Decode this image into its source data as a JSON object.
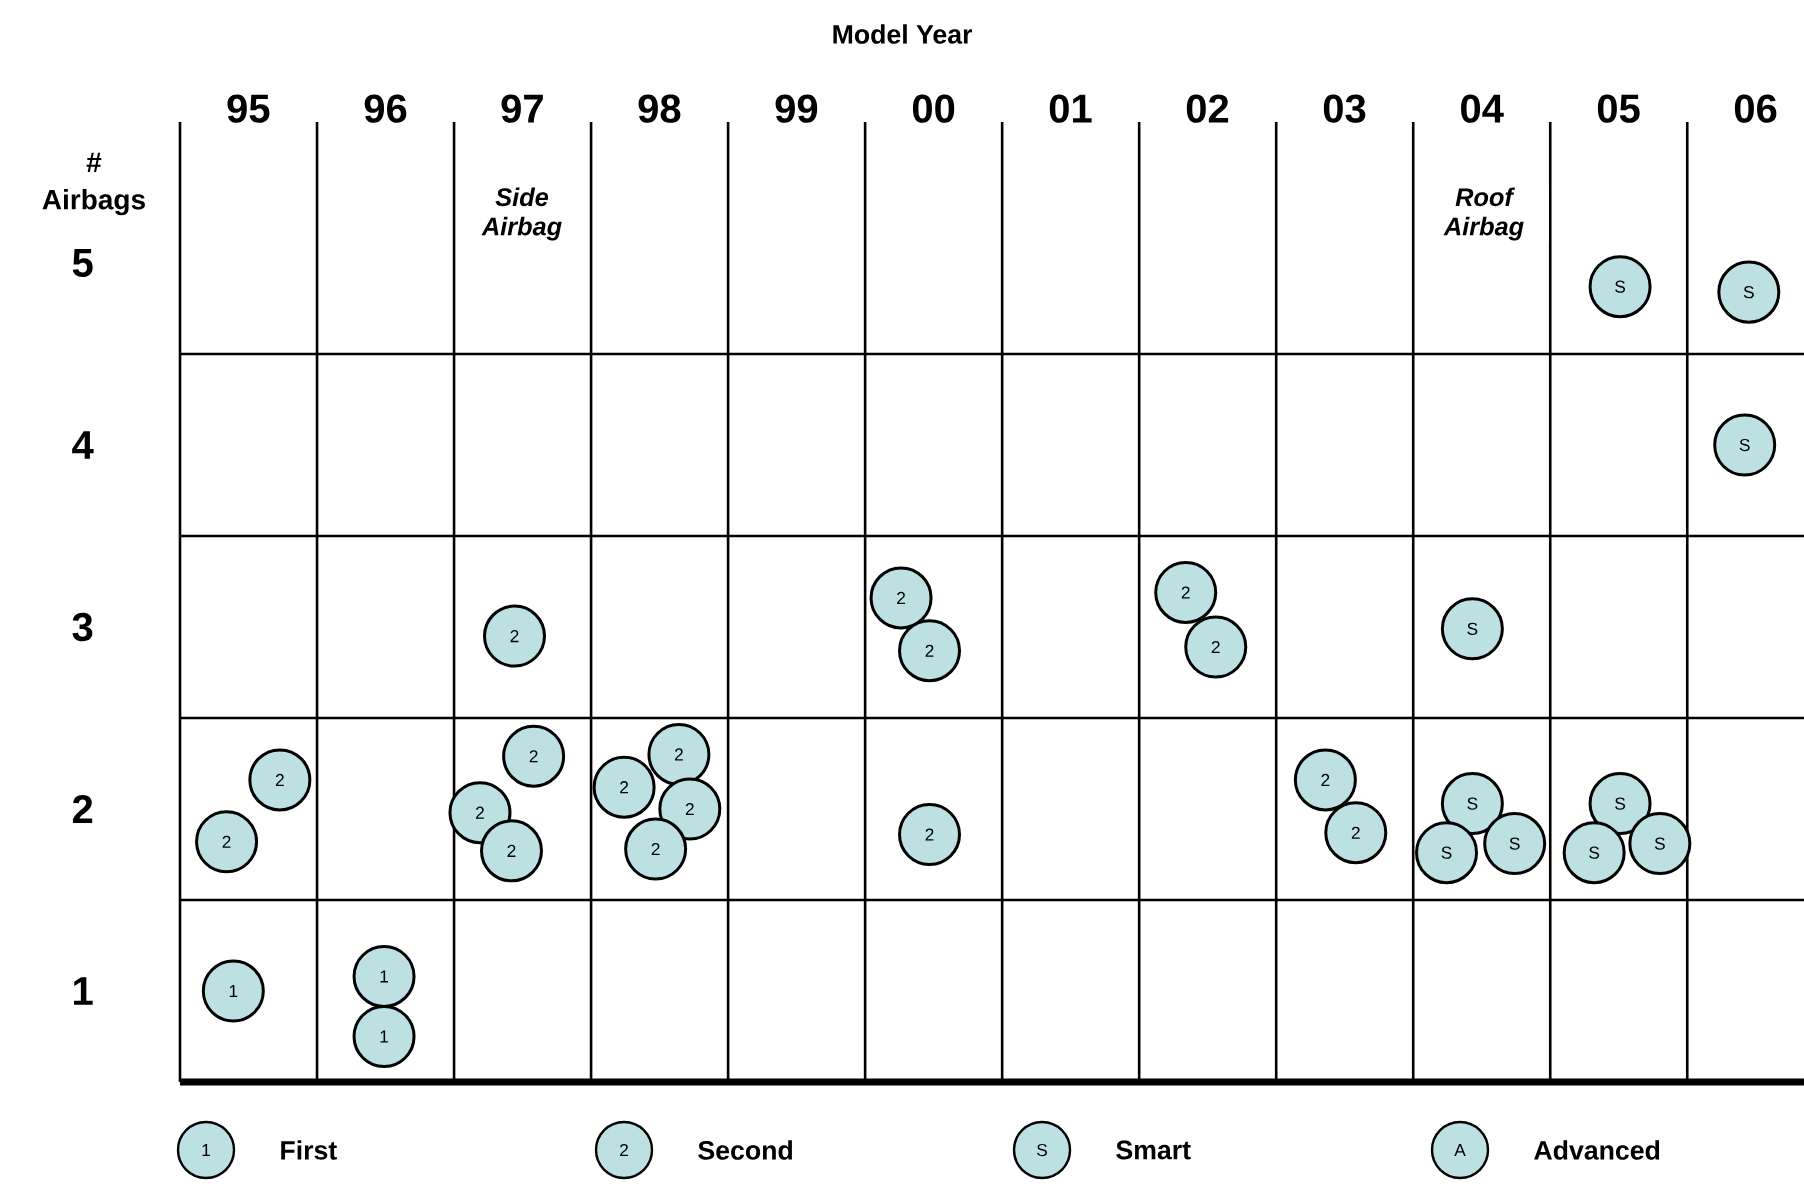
{
  "chart_data": {
    "type": "scatter",
    "xlabel": "Model Year",
    "ylabel": "# Airbags",
    "xlim": [
      "1995-01-01",
      "2006-11-08"
    ],
    "ylim": [
      0.5,
      5.5
    ],
    "xticks": [
      {
        "value": "1995-01-01",
        "label": null
      },
      {
        "value": "1996-01-01",
        "label": null
      },
      {
        "value": "1997-01-01",
        "label": null
      },
      {
        "value": "1998-01-01",
        "label": null
      },
      {
        "value": "1999-01-01",
        "label": null
      },
      {
        "value": "2000-01-01",
        "label": null
      },
      {
        "value": "2001-01-01",
        "label": null
      },
      {
        "value": "2002-01-01",
        "label": null
      },
      {
        "value": "2003-01-01",
        "label": null
      },
      {
        "value": "2004-01-01",
        "label": null
      },
      {
        "value": "2005-01-01",
        "label": null
      },
      {
        "value": "2006-01-01",
        "label": null
      },
      {
        "value": "1995-07-02",
        "label": "95"
      },
      {
        "value": "1996-07-02",
        "label": "96"
      },
      {
        "value": "1997-07-02",
        "label": "97"
      },
      {
        "value": "1998-07-02",
        "label": "98"
      },
      {
        "value": "1999-07-02",
        "label": "99"
      },
      {
        "value": "2000-07-02",
        "label": "00"
      },
      {
        "value": "2001-07-02",
        "label": "01"
      },
      {
        "value": "2002-07-02",
        "label": "02"
      },
      {
        "value": "2003-07-02",
        "label": "03"
      },
      {
        "value": "2004-07-02",
        "label": "04"
      },
      {
        "value": "2005-07-02",
        "label": "05"
      },
      {
        "value": "2006-07-02",
        "label": "06"
      }
    ],
    "yticks": [
      1,
      2,
      3,
      4,
      5,
      {
        "value": 1.5,
        "label": null
      },
      {
        "value": 2.5,
        "label": null
      },
      {
        "value": 3.5,
        "label": null
      },
      {
        "value": 4.5,
        "label": null
      }
    ],
    "grid": true,
    "legend": "bottom",
    "marker": "circle",
    "series": [
      {
        "name": "First",
        "color": "#bde0e2",
        "x": [
          "1995-05-23",
          "1996-06-28",
          "1996-06-28"
        ],
        "values": [
          1.0,
          1.08,
          0.75
        ]
      },
      {
        "name": "Second",
        "color": "#bde0e2",
        "x": [
          "1995-09-24",
          "1995-05-05",
          "1997-06-11",
          "1997-08-01",
          "1997-03-11",
          "1997-06-03",
          "1998-08-23",
          "1998-03-30",
          "1998-09-21",
          "1998-06-22",
          "2000-04-06",
          "2000-06-21",
          "2000-06-21",
          "2002-05-05",
          "2002-07-24",
          "2003-05-12",
          "2003-08-01"
        ],
        "values": [
          2.16,
          1.82,
          2.95,
          2.29,
          1.98,
          1.77,
          2.3,
          2.12,
          2.0,
          1.78,
          3.16,
          2.87,
          1.86,
          3.19,
          2.89,
          2.16,
          1.87
        ]
      },
      {
        "name": "Smart",
        "color": "#bde0e2",
        "x": [
          "2005-07-06",
          "2006-06-14",
          "2006-06-03",
          "2004-06-07",
          "2004-06-07",
          "2004-03-30",
          "2004-09-28",
          "2005-07-06",
          "2005-04-28",
          "2005-10-20"
        ],
        "values": [
          4.87,
          4.84,
          4.0,
          2.99,
          2.03,
          1.76,
          1.81,
          2.03,
          1.76,
          1.81
        ]
      },
      {
        "name": "Advanced",
        "color": "#bde0e2"
      }
    ],
    "annotations": [
      "1",
      "2",
      "S",
      "A",
      "Side Airbag",
      "Roof Airbag"
    ]
  }
}
